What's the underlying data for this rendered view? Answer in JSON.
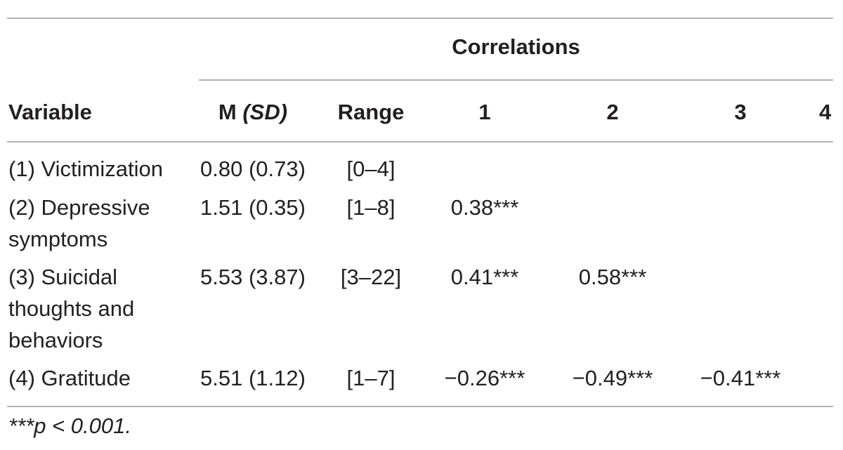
{
  "table": {
    "group_header": "Correlations",
    "columns": {
      "variable": "Variable",
      "m_label": "M ",
      "sd_label": "(SD)",
      "range": "Range",
      "c1": "1",
      "c2": "2",
      "c3": "3",
      "c4": "4"
    },
    "rows": [
      {
        "variable": "(1) Victimization",
        "msd": "0.80 (0.73)",
        "range": "[0–4]",
        "c1": "",
        "c2": "",
        "c3": ""
      },
      {
        "variable": "(2) Depressive symptoms",
        "msd": "1.51 (0.35)",
        "range": "[1–8]",
        "c1": "0.38***",
        "c2": "",
        "c3": ""
      },
      {
        "variable": "(3) Suicidal thoughts and behaviors",
        "msd": "5.53 (3.87)",
        "range": "[3–22]",
        "c1": "0.41***",
        "c2": "0.58***",
        "c3": ""
      },
      {
        "variable": "(4) Gratitude",
        "msd": "5.51 (1.12)",
        "range": "[1–7]",
        "c1": "−0.26***",
        "c2": "−0.49***",
        "c3": "−0.41***"
      }
    ],
    "footnote": "***p < 0.001."
  }
}
